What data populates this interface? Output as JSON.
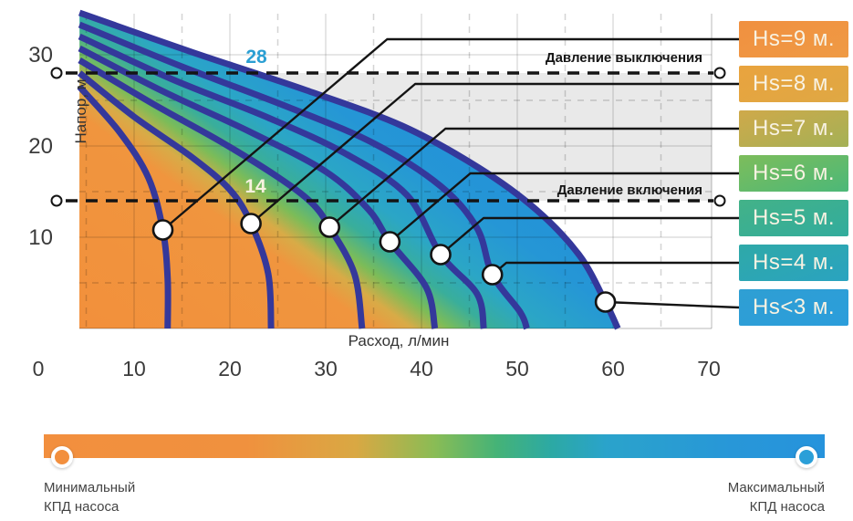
{
  "y_axis": {
    "label": "Напор, м",
    "ticks": [
      "30",
      "20",
      "10"
    ],
    "tick_values": [
      30,
      20,
      10
    ]
  },
  "x_axis": {
    "label": "Расход, л/мин",
    "ticks": [
      "0",
      "10",
      "20",
      "30",
      "40",
      "50",
      "60",
      "70"
    ],
    "tick_values": [
      0,
      10,
      20,
      30,
      40,
      50,
      60,
      70
    ]
  },
  "thresholds": {
    "off": {
      "label": "Давление выключения",
      "value_label": "28",
      "value": 28
    },
    "on": {
      "label": "Давление включения",
      "value_label": "14",
      "value": 14
    }
  },
  "legend": {
    "items": [
      {
        "label": "Hs=9 м.",
        "color1": "#f09040",
        "color2": "#ef9a44"
      },
      {
        "label": "Hs=8 м.",
        "color1": "#e9a33e",
        "color2": "#dfa844"
      },
      {
        "label": "Hs=7 м.",
        "color1": "#cfa94a",
        "color2": "#a4b156"
      },
      {
        "label": "Hs=6 м.",
        "color1": "#7dbd5b",
        "color2": "#4cb878"
      },
      {
        "label": "Hs=5 м.",
        "color1": "#43b288",
        "color2": "#32ac9d"
      },
      {
        "label": "Hs=4 м.",
        "color1": "#2fa9a8",
        "color2": "#2aa3c0"
      },
      {
        "label": "Hs<3 м.",
        "color1": "#2f9fd3",
        "color2": "#2b9ddb"
      }
    ]
  },
  "efficiency_bar": {
    "min_label_line1": "Минимальный",
    "min_label_line2": "КПД насоса",
    "max_label_line1": "Максимальный",
    "max_label_line2": "КПД насоса",
    "min_color": "#f28f3e",
    "max_color": "#2b9fd8"
  },
  "chart_data": {
    "type": "line",
    "title": "",
    "xlabel": "Расход, л/мин",
    "ylabel": "Напор, м",
    "xlim": [
      0,
      70
    ],
    "ylim": [
      0,
      34.5
    ],
    "grid": "on",
    "legend_position": "right",
    "curve_color": "#34389b",
    "band_color": "#e9e9e9",
    "threshold_lines": [
      {
        "label": "Давление выключения",
        "y": 28
      },
      {
        "label": "Давление включения",
        "y": 14
      }
    ],
    "efficiency_gradient_stops": [
      [
        0,
        "#f2903c"
      ],
      [
        0.44,
        "#f0953e"
      ],
      [
        0.5,
        "#d8ab47"
      ],
      [
        0.555,
        "#7cbc58"
      ],
      [
        0.62,
        "#39ae9b"
      ],
      [
        0.7,
        "#2ba6c6"
      ],
      [
        0.84,
        "#2596d6"
      ],
      [
        1,
        "#2391d8"
      ]
    ],
    "series": [
      {
        "name": "Hs=9 м.",
        "marker": [
          13.0,
          10.8
        ],
        "points": [
          [
            4.3,
            26.5
          ],
          [
            8.5,
            21.5
          ],
          [
            11.5,
            16.5
          ],
          [
            13.0,
            10.8
          ],
          [
            13.5,
            5.5
          ],
          [
            13.5,
            0
          ]
        ]
      },
      {
        "name": "Hs=8 м.",
        "marker": [
          22.2,
          11.5
        ],
        "points": [
          [
            4.3,
            28
          ],
          [
            10,
            23.2
          ],
          [
            16,
            18.8
          ],
          [
            20,
            15.2
          ],
          [
            22.2,
            11.5
          ],
          [
            24,
            6
          ],
          [
            24.3,
            0
          ]
        ]
      },
      {
        "name": "Hs=7 м.",
        "marker": [
          30.4,
          11.1
        ],
        "points": [
          [
            4.3,
            29.4
          ],
          [
            12,
            24.6
          ],
          [
            19,
            20.5
          ],
          [
            25,
            16.6
          ],
          [
            28.5,
            13.8
          ],
          [
            30.4,
            11.1
          ],
          [
            33,
            6
          ],
          [
            33.8,
            0
          ]
        ]
      },
      {
        "name": "Hs=6 м.",
        "marker": [
          36.7,
          9.5
        ],
        "points": [
          [
            4.3,
            30.7
          ],
          [
            13,
            26
          ],
          [
            22,
            21.6
          ],
          [
            30,
            17.2
          ],
          [
            34.5,
            13
          ],
          [
            36.7,
            9.5
          ],
          [
            40.5,
            4.5
          ],
          [
            41.4,
            0
          ]
        ]
      },
      {
        "name": "Hs=5 м.",
        "marker": [
          42.0,
          8.1
        ],
        "points": [
          [
            4.3,
            32
          ],
          [
            14,
            27.3
          ],
          [
            24,
            23.1
          ],
          [
            32,
            19.2
          ],
          [
            38.5,
            14.6
          ],
          [
            42.0,
            8.1
          ],
          [
            45.8,
            3.8
          ],
          [
            46.5,
            0
          ]
        ]
      },
      {
        "name": "Hs=4 м.",
        "marker": [
          47.4,
          5.9
        ],
        "points": [
          [
            4.3,
            33.3
          ],
          [
            15,
            28.7
          ],
          [
            26,
            24.3
          ],
          [
            35,
            20.3
          ],
          [
            42,
            15.6
          ],
          [
            45.8,
            11
          ],
          [
            47.4,
            5.9
          ],
          [
            50.3,
            1.8
          ],
          [
            51,
            0
          ]
        ]
      },
      {
        "name": "Hs<3 м.",
        "marker": [
          59.2,
          2.9
        ],
        "points": [
          [
            4.3,
            34.6
          ],
          [
            16,
            30.3
          ],
          [
            28,
            26.1
          ],
          [
            38,
            22.2
          ],
          [
            46,
            17.6
          ],
          [
            52,
            13
          ],
          [
            56.5,
            8
          ],
          [
            59.2,
            2.9
          ],
          [
            60.5,
            0
          ]
        ]
      }
    ]
  }
}
